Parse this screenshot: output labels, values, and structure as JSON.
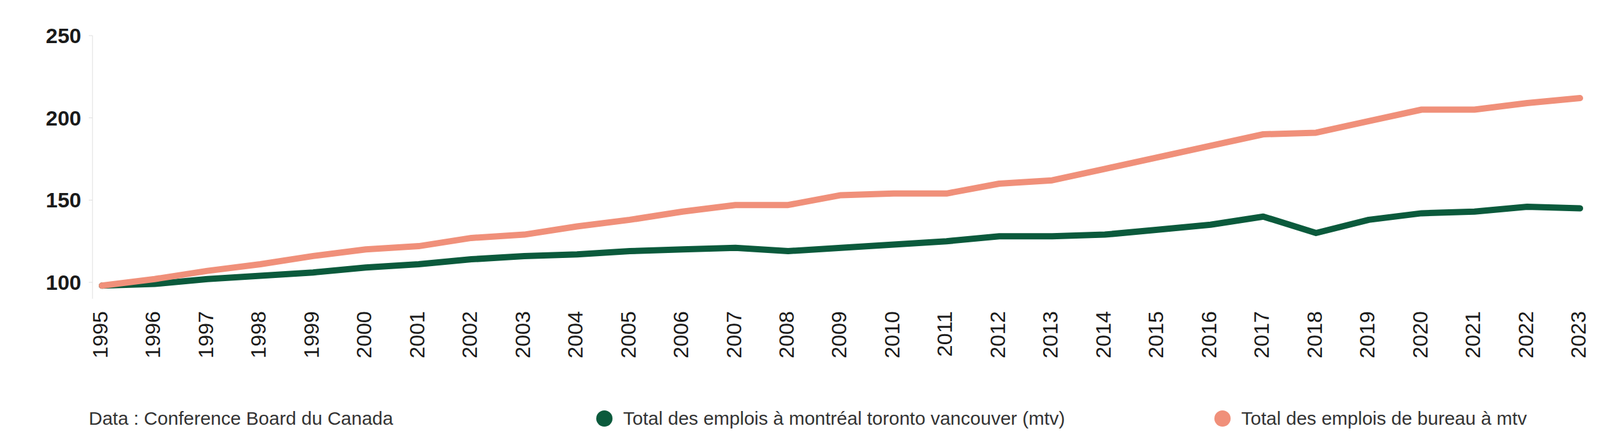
{
  "chart_data": {
    "type": "line",
    "source": "Data : Conference Board du Canada",
    "categories": [
      "1995",
      "1996",
      "1997",
      "1998",
      "1999",
      "2000",
      "2001",
      "2002",
      "2003",
      "2004",
      "2005",
      "2006",
      "2007",
      "2008",
      "2009",
      "2010",
      "2011",
      "2012",
      "2013",
      "2014",
      "2015",
      "2016",
      "2017",
      "2018",
      "2019",
      "2020",
      "2021",
      "2022",
      "2023"
    ],
    "series": [
      {
        "name": "Total des emplois à montréal toronto vancouver (mtv)",
        "color": "#0b5a3c",
        "values": [
          98,
          99,
          102,
          104,
          106,
          109,
          111,
          114,
          116,
          117,
          119,
          120,
          121,
          119,
          121,
          123,
          125,
          128,
          128,
          129,
          132,
          135,
          140,
          130,
          138,
          142,
          143,
          146,
          145
        ]
      },
      {
        "name": "Total des emplois de bureau à mtv",
        "color": "#f0907a",
        "values": [
          98,
          102,
          107,
          111,
          116,
          120,
          122,
          127,
          129,
          134,
          138,
          143,
          147,
          147,
          153,
          154,
          154,
          160,
          162,
          169,
          176,
          183,
          190,
          191,
          198,
          205,
          205,
          209,
          212
        ]
      }
    ],
    "ylim": [
      90,
      250
    ],
    "yticks": [
      100,
      150,
      200,
      250
    ],
    "grid": false,
    "legend": "bottom"
  }
}
